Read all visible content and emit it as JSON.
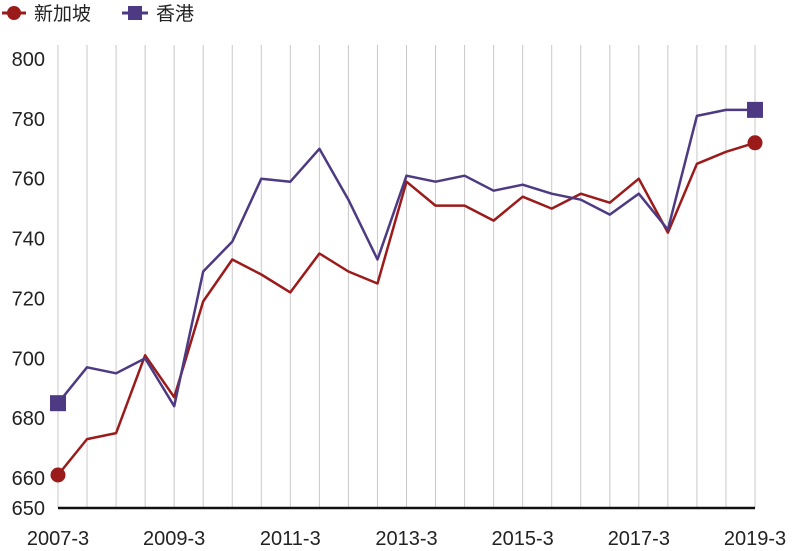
{
  "chart_data": {
    "type": "line",
    "x": [
      "2007-3",
      "2007-9",
      "2008-3",
      "2008-9",
      "2009-3",
      "2009-9",
      "2010-3",
      "2010-9",
      "2011-3",
      "2011-9",
      "2012-3",
      "2012-9",
      "2013-3",
      "2013-9",
      "2014-3",
      "2014-9",
      "2015-3",
      "2015-9",
      "2016-3",
      "2016-9",
      "2017-3",
      "2017-9",
      "2018-3",
      "2018-9",
      "2019-3"
    ],
    "x_tick_labels": [
      "2007-3",
      "2009-3",
      "2011-3",
      "2013-3",
      "2015-3",
      "2017-3",
      "2019-3"
    ],
    "ylim": [
      650,
      800
    ],
    "y_ticks": [
      650,
      660,
      680,
      700,
      720,
      740,
      760,
      780,
      800
    ],
    "grid": "vertical",
    "legend_position": "top-left",
    "series": [
      {
        "name": "新加坡",
        "color": "#9b1b1b",
        "marker": "circle",
        "values": [
          661,
          673,
          675,
          701,
          687,
          719,
          733,
          728,
          722,
          735,
          729,
          725,
          759,
          751,
          751,
          746,
          754,
          750,
          755,
          752,
          760,
          742,
          765,
          769,
          772
        ]
      },
      {
        "name": "香港",
        "color": "#4e3a82",
        "marker": "square",
        "values": [
          685,
          697,
          695,
          700,
          684,
          729,
          739,
          760,
          759,
          770,
          753,
          733,
          761,
          759,
          761,
          756,
          758,
          755,
          753,
          748,
          755,
          743,
          781,
          783,
          783
        ]
      }
    ]
  }
}
